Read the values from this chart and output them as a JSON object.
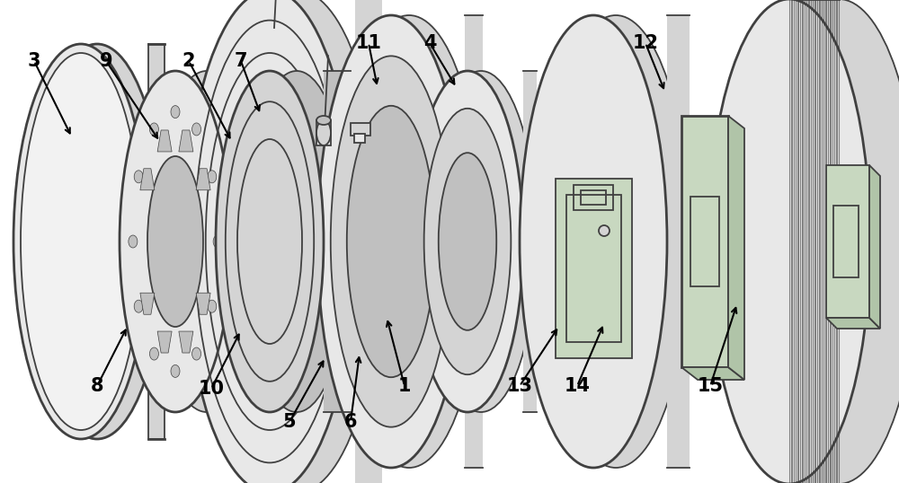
{
  "bg": "#ffffff",
  "lc": "#404040",
  "lw": 1.3,
  "blw": 2.0,
  "fc_light": "#e8e8e8",
  "fc_mid": "#d4d4d4",
  "fc_dark": "#c0c0c0",
  "fc_green": "#c8d8c0",
  "fc_green_dark": "#b0c4a8",
  "fc_white": "#f2f2f2"
}
